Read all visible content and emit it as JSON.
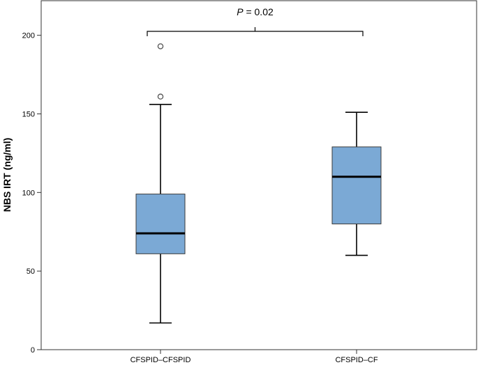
{
  "chart_data": {
    "type": "box",
    "ylabel": "NBS IRT (ng/ml)",
    "xlabel": "",
    "ylim": [
      0,
      222
    ],
    "yticks": [
      0,
      50,
      100,
      150,
      200
    ],
    "categories": [
      "CFSPID–CFSPID",
      "CFSPID–CF"
    ],
    "boxes": [
      {
        "category": "CFSPID–CFSPID",
        "whisker_low": 17,
        "q1": 61,
        "median": 74,
        "q3": 99,
        "whisker_high": 156,
        "outliers": [
          161,
          193
        ]
      },
      {
        "category": "CFSPID–CF",
        "whisker_low": 60,
        "q1": 80,
        "median": 110,
        "q3": 129,
        "whisker_high": 151,
        "outliers": []
      }
    ],
    "annotation": {
      "symbol": "P",
      "text": " = 0.02",
      "between": [
        "CFSPID–CFSPID",
        "CFSPID–CF"
      ]
    },
    "colors": {
      "box_fill": "#7ba9d5",
      "box_stroke": "#3a3a3a",
      "plot_background": "#ffffff",
      "axis": "#333333"
    },
    "grid": false,
    "legend": "none"
  }
}
